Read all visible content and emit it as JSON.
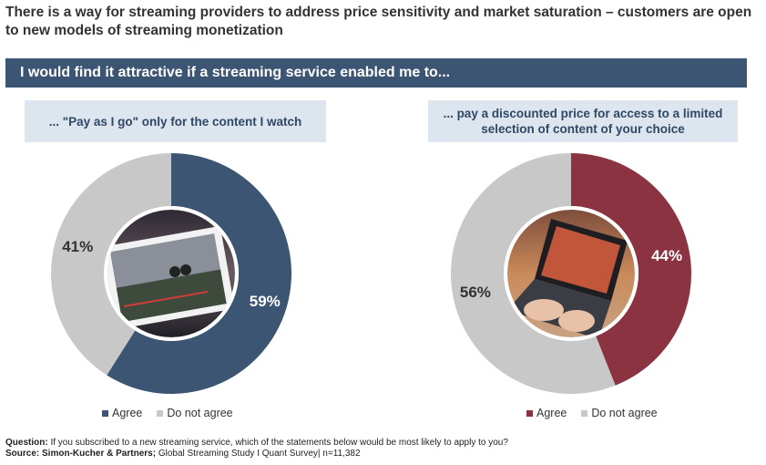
{
  "title": "There is a way for streaming providers to address price sensitivity and market saturation – customers are open to new models of streaming monetization",
  "banner": "I would find it attractive if a streaming service enabled me to...",
  "colors": {
    "agree_1": "#3b5573",
    "agree_2": "#8b3340",
    "disagree": "#c8c8c8",
    "banner": "#3b5573",
    "subhead_bg": "#dde5ee"
  },
  "chart_data": [
    {
      "type": "pie",
      "title": "... \"Pay as I go\" only for the content I watch",
      "categories": [
        "Agree",
        "Do not agree"
      ],
      "values": [
        59,
        41
      ],
      "labels": [
        "59%",
        "41%"
      ],
      "legend": [
        "Agree",
        "Do not agree"
      ],
      "legend_placement": "bottom"
    },
    {
      "type": "pie",
      "title": "... pay a discounted price for access to a limited selection of content of your choice",
      "categories": [
        "Agree",
        "Do not agree"
      ],
      "values": [
        44,
        56
      ],
      "labels": [
        "44%",
        "56%"
      ],
      "legend": [
        "Agree",
        "Do not agree"
      ],
      "legend_placement": "bottom"
    }
  ],
  "footer": {
    "question_label": "Question:",
    "question_text": " If you subscribed to a new streaming service, which of the statements below would be most likely to apply to you?",
    "source_label": "Source: Simon-Kucher & Partners;",
    "source_text": " Global Streaming Study I Quant Survey| n=11,382"
  }
}
